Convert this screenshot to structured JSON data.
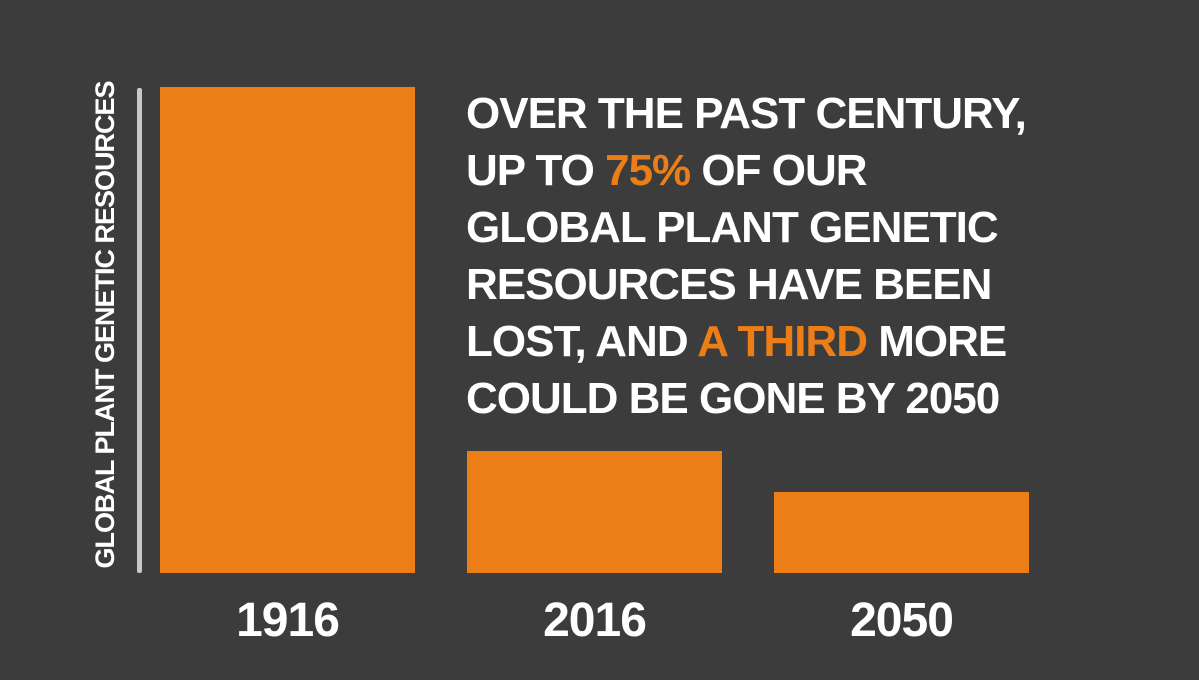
{
  "colors": {
    "background": "#3D3C3C",
    "bar": "#EB7E16",
    "highlight": "#EB7E16",
    "text": "#FFFFFF",
    "axis_line": "#C8C8C8"
  },
  "headline": {
    "lines": [
      {
        "segments": [
          {
            "text": "OVER THE PAST CENTURY,",
            "highlight": false
          }
        ]
      },
      {
        "segments": [
          {
            "text": "UP TO ",
            "highlight": false
          },
          {
            "text": "75%",
            "highlight": true
          },
          {
            "text": " OF OUR",
            "highlight": false
          }
        ]
      },
      {
        "segments": [
          {
            "text": "GLOBAL PLANT GENETIC",
            "highlight": false
          }
        ]
      },
      {
        "segments": [
          {
            "text": "RESOURCES HAVE BEEN",
            "highlight": false
          }
        ]
      },
      {
        "segments": [
          {
            "text": "LOST, AND ",
            "highlight": false
          },
          {
            "text": "A THIRD",
            "highlight": true
          },
          {
            "text": " MORE",
            "highlight": false
          }
        ]
      },
      {
        "segments": [
          {
            "text": "COULD BE GONE BY 2050",
            "highlight": false
          }
        ]
      }
    ]
  },
  "chart_data": {
    "type": "bar",
    "categories": [
      "1916",
      "2016",
      "2050"
    ],
    "values": [
      100,
      25,
      16.7
    ],
    "title": "OVER THE PAST CENTURY, UP TO 75% OF OUR GLOBAL PLANT GENETIC RESOURCES HAVE BEEN LOST, AND A THIRD MORE COULD BE GONE BY 2050",
    "xlabel": "",
    "ylabel": "GLOBAL PLANT GENETIC RESOURCES",
    "ylim": [
      0,
      100
    ],
    "grid": false,
    "legend_position": "none",
    "bar_color": "#EB7E16",
    "highlighted_phrases": [
      "75%",
      "A THIRD"
    ]
  }
}
